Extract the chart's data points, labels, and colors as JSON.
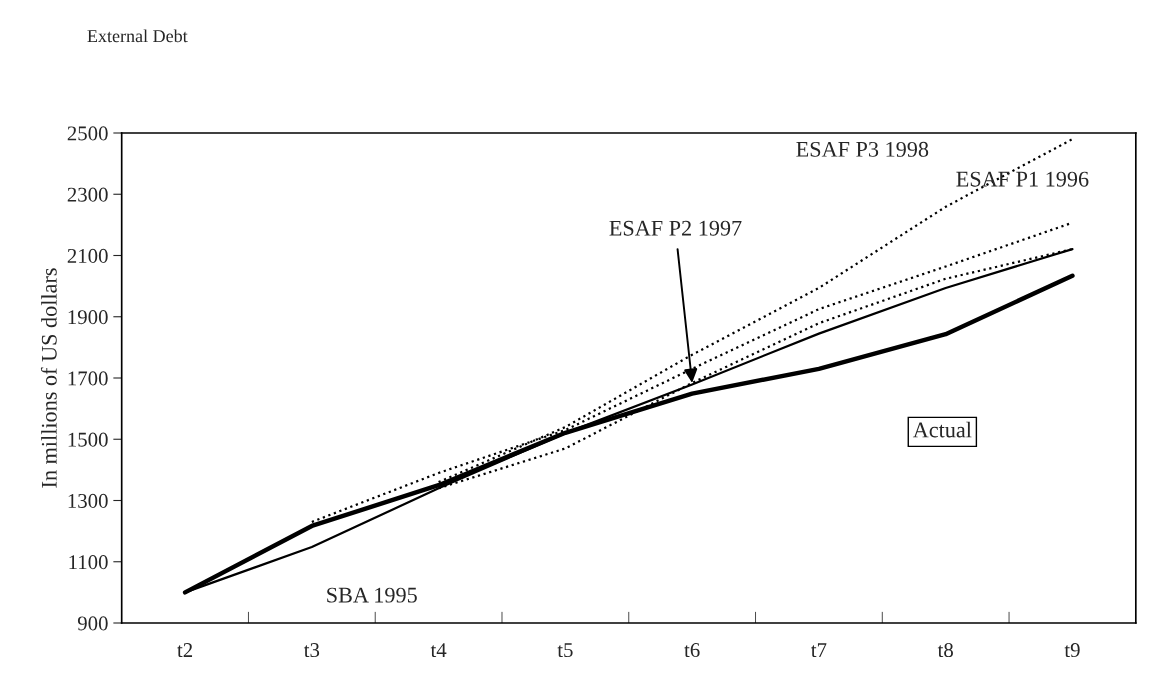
{
  "chart_data": {
    "type": "line",
    "title": "External Debt",
    "ylabel": "In millions of US dollars",
    "categories": [
      "t2",
      "t3",
      "t4",
      "t5",
      "t6",
      "t7",
      "t8",
      "t9"
    ],
    "series": [
      {
        "color": "#000000",
        "line_style": "solid",
        "values": [
          1000,
          1217,
          1350,
          1521,
          1649,
          1730,
          1843,
          2034
        ]
      },
      {
        "color": "#000000",
        "line_style": "solid",
        "values": [
          1000,
          1148,
          1340,
          1520,
          1679,
          1845,
          1994,
          2121
        ]
      },
      {
        "color": "#000000",
        "line_style": "dotted",
        "values": [
          null,
          1230,
          1390,
          1530,
          1730,
          1925,
          2064,
          2207
        ]
      },
      {
        "color": "#000000",
        "line_style": "dotted",
        "values": [
          null,
          null,
          1340,
          1470,
          1684,
          1879,
          2024,
          2121
        ]
      },
      {
        "color": "#000000",
        "line_style": "dotted",
        "values": [
          null,
          null,
          1360,
          1540,
          1776,
          1994,
          2259,
          2480
        ]
      }
    ],
    "annotations": [
      {
        "text": "SBA 1995",
        "x": "t3",
        "y": 1148
      },
      "Actual",
      {
        "text": "ESAF P2 1997",
        "x": "t6",
        "y": 1684
      },
      {
        "text": "ESAF P1 1996",
        "x": "t9",
        "y": 2207
      },
      {
        "text": "ESAF P3 1998",
        "x": "t8",
        "y": 2259
      }
    ],
    "ylim": [
      900,
      2500
    ],
    "yticks": [
      900,
      1100,
      1300,
      1500,
      1700,
      1900,
      2100,
      2300,
      2500
    ],
    "grid": false,
    "legend": false,
    "marker": "none"
  }
}
